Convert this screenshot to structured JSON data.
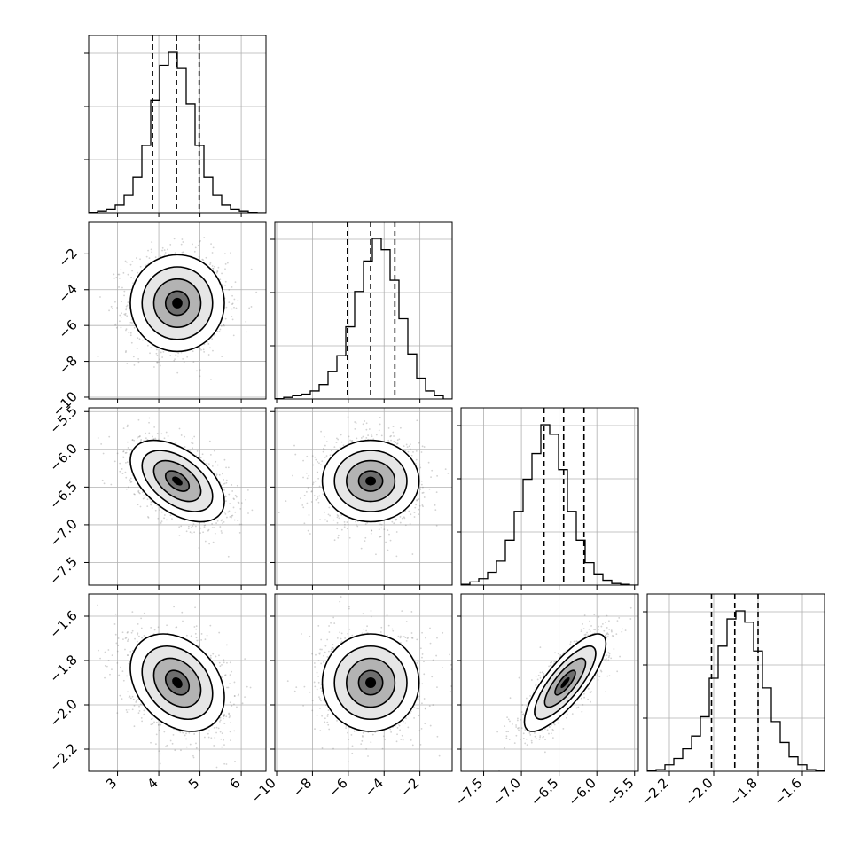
{
  "chart_data": {
    "type": "corner",
    "title": "",
    "parameters": [
      "",
      "",
      "",
      ""
    ],
    "colors": {
      "hist_line": "#000000",
      "contour": "#000000",
      "grid": "#b0b0b0",
      "density_dark": "#000000",
      "density_light": "#ffffff",
      "scatter": "#7f7f7f"
    },
    "grid": true,
    "ranges": [
      [
        2.3,
        6.6
      ],
      [
        -10.1,
        -0.2
      ],
      [
        -7.8,
        -5.45
      ],
      [
        -2.3,
        -1.5
      ]
    ],
    "ticks": [
      [
        3,
        4,
        5,
        6
      ],
      [
        -10,
        -8,
        -6,
        -4,
        -2
      ],
      [
        -7.5,
        -7.0,
        -6.5,
        -6.0,
        -5.5
      ],
      [
        -2.2,
        -2.0,
        -1.8,
        -1.6
      ]
    ],
    "tick_labels": [
      [
        "3",
        "4",
        "5",
        "6"
      ],
      [
        "−10",
        "−8",
        "−6",
        "−4",
        "−2"
      ],
      [
        "−7.5",
        "−7.0",
        "−6.5",
        "−6.0",
        "−5.5"
      ],
      [
        "−2.2",
        "−2.0",
        "−1.8",
        "−1.6"
      ]
    ],
    "means": [
      4.45,
      -4.75,
      -6.42,
      -1.9
    ],
    "sigmas": [
      0.57,
      1.35,
      0.27,
      0.11
    ],
    "quantiles": [
      [
        3.85,
        4.43,
        4.98
      ],
      [
        -6.05,
        -4.75,
        -3.4
      ],
      [
        -6.7,
        -6.44,
        -6.17
      ],
      [
        -2.01,
        -1.905,
        -1.8
      ]
    ],
    "correlations": [
      {
        "pair": [
          1,
          0
        ],
        "rho": 0.0
      },
      {
        "pair": [
          2,
          0
        ],
        "rho": -0.5
      },
      {
        "pair": [
          2,
          1
        ],
        "rho": 0.0
      },
      {
        "pair": [
          3,
          0
        ],
        "rho": -0.3
      },
      {
        "pair": [
          3,
          1
        ],
        "rho": 0.0
      },
      {
        "pair": [
          3,
          2
        ],
        "rho": 0.8
      }
    ],
    "histograms": [
      {
        "edges_range": [
          2.3,
          6.6
        ],
        "bins": 20,
        "counts": [
          0.2,
          1,
          2,
          5,
          11,
          22,
          42,
          70,
          92,
          100,
          90,
          68,
          42,
          22,
          11,
          5,
          2,
          1,
          0.2,
          0
        ]
      },
      {
        "edges_range": [
          -10.1,
          -0.2
        ],
        "bins": 20,
        "counts": [
          0.2,
          1,
          2,
          3,
          5,
          9,
          17,
          27,
          45,
          67,
          86,
          100,
          93,
          74,
          50,
          28,
          13,
          5,
          2,
          0
        ]
      },
      {
        "edges_range": [
          -7.8,
          -5.45
        ],
        "bins": 20,
        "counts": [
          0.5,
          2,
          4,
          8,
          15,
          28,
          46,
          66,
          82,
          100,
          94,
          72,
          46,
          28,
          14,
          7,
          3,
          1,
          0.5,
          0
        ]
      },
      {
        "edges_range": [
          -2.3,
          -1.5
        ],
        "bins": 20,
        "counts": [
          0.5,
          1,
          4,
          8,
          14,
          22,
          34,
          58,
          78,
          95,
          100,
          93,
          75,
          52,
          31,
          18,
          9,
          4,
          1,
          0.5
        ]
      }
    ],
    "density_levels_sigma": [
      0.5,
      1.0,
      1.5,
      2.0
    ]
  }
}
